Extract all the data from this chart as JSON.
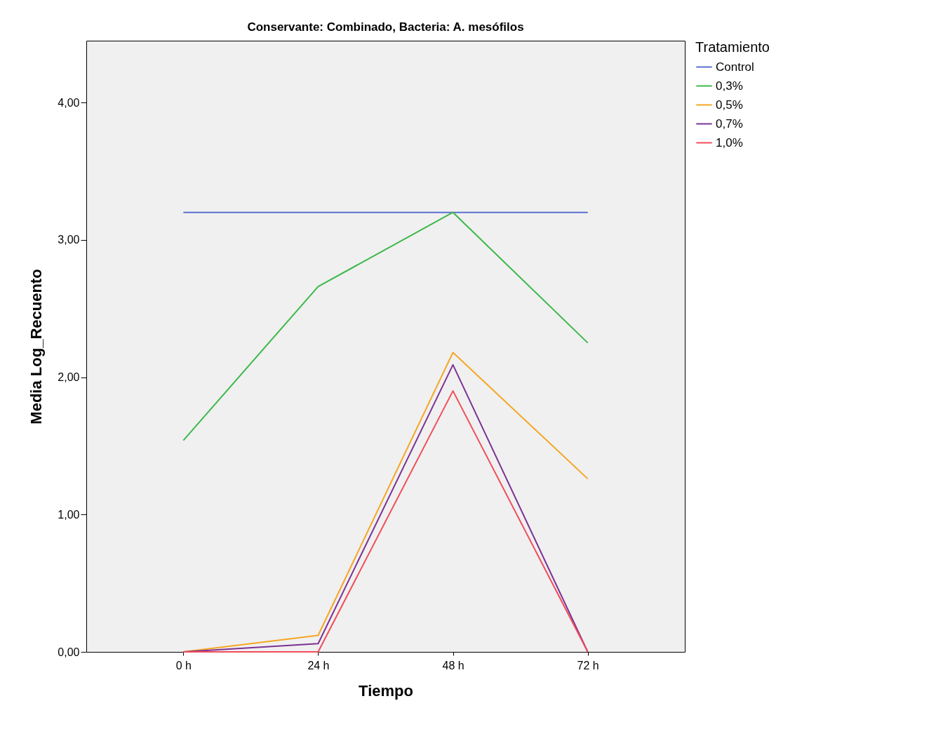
{
  "chart_data": {
    "type": "line",
    "title": "Conservante: Combinado, Bacteria: A. mesófilos",
    "xlabel": "Tiempo",
    "ylabel": "Media Log_Recuento",
    "legend_title": "Tratamiento",
    "categories": [
      "0 h",
      "24 h",
      "48 h",
      "72 h"
    ],
    "series": [
      {
        "name": "Control",
        "color": "#5b6fd0",
        "values": [
          3.2,
          3.2,
          3.2,
          3.2
        ]
      },
      {
        "name": "0,3%",
        "color": "#3cb84a",
        "values": [
          1.54,
          2.66,
          3.2,
          2.25
        ]
      },
      {
        "name": "0,5%",
        "color": "#f5a623",
        "values": [
          0,
          0.12,
          2.18,
          1.26
        ]
      },
      {
        "name": "0,7%",
        "color": "#7b3294",
        "values": [
          0,
          0.06,
          2.09,
          0
        ]
      },
      {
        "name": "1,0%",
        "color": "#f04e5a",
        "values": [
          0,
          0,
          1.9,
          0
        ]
      }
    ],
    "ylim": [
      0,
      4.45
    ],
    "yticks": [
      {
        "value": 0,
        "label": "0,00"
      },
      {
        "value": 1,
        "label": "1,00"
      },
      {
        "value": 2,
        "label": "2,00"
      },
      {
        "value": 3,
        "label": "3,00"
      },
      {
        "value": 4,
        "label": "4,00"
      }
    ],
    "grid": false,
    "legend": "top right",
    "marker": "none",
    "line_style": "solid"
  }
}
